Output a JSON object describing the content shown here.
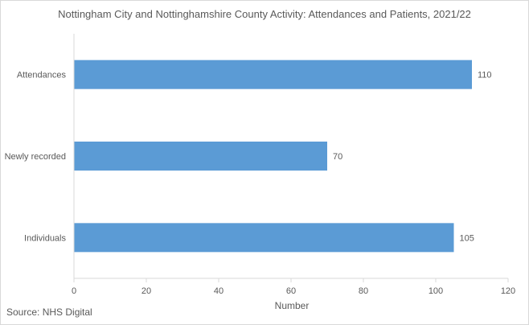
{
  "chart_data": {
    "type": "bar",
    "orientation": "horizontal",
    "title": "Nottingham City and Nottinghamshire County Activity: Attendances and Patients, 2021/22",
    "categories": [
      "Attendances",
      "Newly recorded",
      "Individuals"
    ],
    "values": [
      110,
      70,
      105
    ],
    "data_labels": [
      "110",
      "70",
      "105"
    ],
    "xlabel": "Number",
    "ylabel": "",
    "xlim": [
      0,
      120
    ],
    "xticks": [
      0,
      20,
      40,
      60,
      80,
      100,
      120
    ],
    "xtick_labels": [
      "0",
      "20",
      "40",
      "60",
      "80",
      "100",
      "120"
    ],
    "grid": false,
    "legend": "none",
    "bar_color": "#5b9bd5"
  },
  "footer": {
    "source": "Source: NHS Digital"
  }
}
